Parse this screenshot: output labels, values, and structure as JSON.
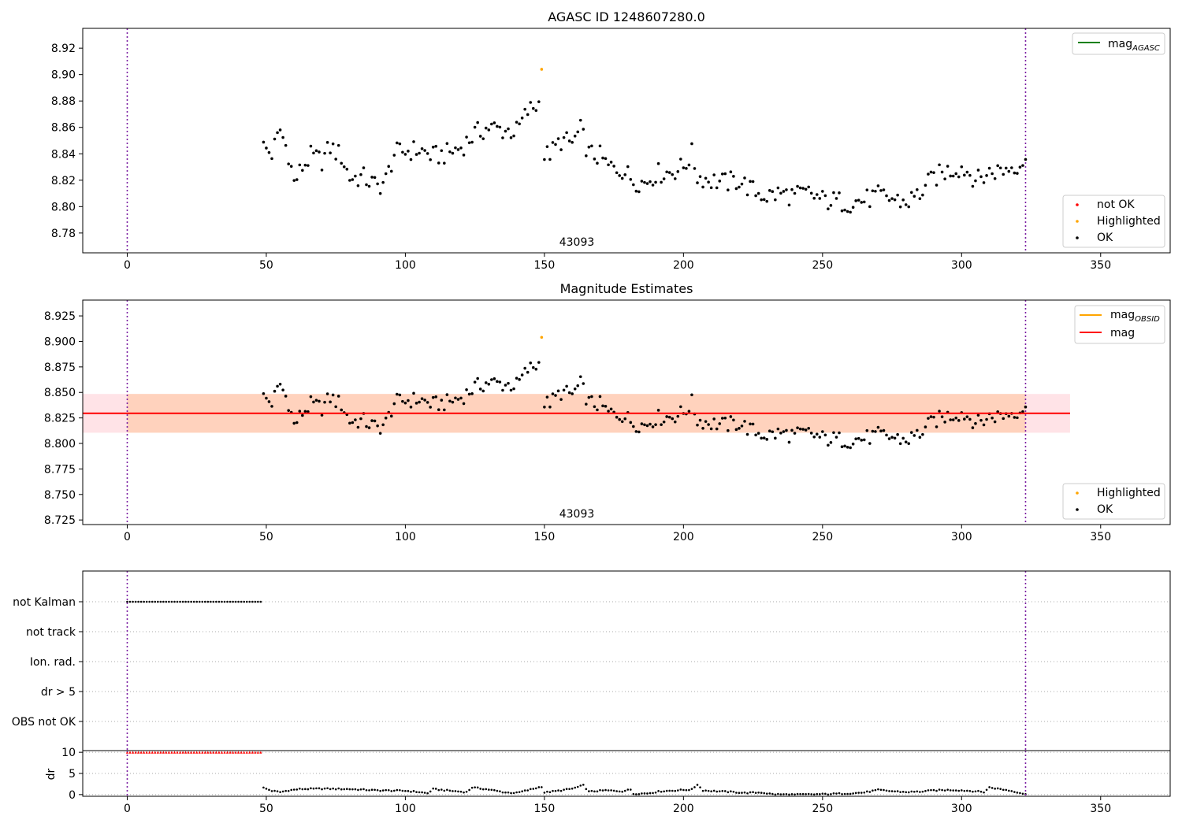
{
  "chart_data": [
    {
      "id": "top",
      "type": "scatter",
      "title": "AGASC ID 1248607280.0",
      "xlim": [
        -16,
        375
      ],
      "ylim": [
        8.765,
        8.935
      ],
      "xticks": [
        0,
        50,
        100,
        150,
        200,
        250,
        300,
        350
      ],
      "yticks": [
        8.78,
        8.8,
        8.82,
        8.84,
        8.86,
        8.88,
        8.9,
        8.92
      ],
      "ytick_decimals": 2,
      "vlines": [
        0,
        323
      ],
      "annotation": {
        "text": "43093",
        "x": 161,
        "y": 8.774
      },
      "legend_upper": [
        {
          "label": "mag",
          "sub": "AGASC",
          "color": "#008000",
          "kind": "line"
        }
      ],
      "legend_lower": [
        {
          "label": "not OK",
          "color": "#ff0000",
          "kind": "point"
        },
        {
          "label": "Highlighted",
          "color": "#ffa500",
          "kind": "point"
        },
        {
          "label": "OK",
          "color": "#000000",
          "kind": "point"
        }
      ],
      "highlighted": [
        [
          149,
          8.904
        ]
      ],
      "series": [
        {
          "name": "OK",
          "anchors": [
            [
              49,
              8.845
            ],
            [
              52,
              8.84
            ],
            [
              55,
              8.858
            ],
            [
              58,
              8.84
            ],
            [
              60,
              8.818
            ],
            [
              63,
              8.83
            ],
            [
              66,
              8.838
            ],
            [
              70,
              8.835
            ],
            [
              73,
              8.845
            ],
            [
              77,
              8.838
            ],
            [
              80,
              8.822
            ],
            [
              85,
              8.822
            ],
            [
              90,
              8.815
            ],
            [
              93,
              8.82
            ],
            [
              96,
              8.84
            ],
            [
              100,
              8.842
            ],
            [
              105,
              8.843
            ],
            [
              110,
              8.838
            ],
            [
              115,
              8.84
            ],
            [
              120,
              8.845
            ],
            [
              125,
              8.855
            ],
            [
              130,
              8.86
            ],
            [
              135,
              8.858
            ],
            [
              140,
              8.857
            ],
            [
              144,
              8.872
            ],
            [
              148,
              8.878
            ],
            [
              150,
              8.838
            ],
            [
              153,
              8.842
            ],
            [
              156,
              8.85
            ],
            [
              160,
              8.848
            ],
            [
              163,
              8.858
            ],
            [
              166,
              8.84
            ],
            [
              170,
              8.838
            ],
            [
              173,
              8.83
            ],
            [
              178,
              8.828
            ],
            [
              182,
              8.82
            ],
            [
              186,
              8.818
            ],
            [
              190,
              8.825
            ],
            [
              195,
              8.826
            ],
            [
              200,
              8.83
            ],
            [
              203,
              8.84
            ],
            [
              205,
              8.823
            ],
            [
              210,
              8.82
            ],
            [
              215,
              8.818
            ],
            [
              220,
              8.82
            ],
            [
              225,
              8.812
            ],
            [
              230,
              8.808
            ],
            [
              235,
              8.81
            ],
            [
              240,
              8.808
            ],
            [
              245,
              8.81
            ],
            [
              250,
              8.805
            ],
            [
              255,
              8.804
            ],
            [
              260,
              8.803
            ],
            [
              265,
              8.805
            ],
            [
              270,
              8.808
            ],
            [
              275,
              8.806
            ],
            [
              280,
              8.803
            ],
            [
              285,
              8.81
            ],
            [
              290,
              8.822
            ],
            [
              295,
              8.827
            ],
            [
              300,
              8.83
            ],
            [
              303,
              8.825
            ],
            [
              306,
              8.82
            ],
            [
              310,
              8.826
            ],
            [
              315,
              8.828
            ],
            [
              320,
              8.832
            ],
            [
              323,
              8.836
            ]
          ],
          "step": 1
        }
      ]
    },
    {
      "id": "middle",
      "type": "scatter",
      "title": "Magnitude Estimates",
      "xlim": [
        -16,
        375
      ],
      "ylim": [
        8.7205,
        8.9405
      ],
      "xticks": [
        0,
        50,
        100,
        150,
        200,
        250,
        300,
        350
      ],
      "yticks": [
        8.725,
        8.75,
        8.775,
        8.8,
        8.825,
        8.85,
        8.875,
        8.9,
        8.925
      ],
      "ytick_decimals": 3,
      "vlines": [
        0,
        323
      ],
      "annotation": {
        "text": "43093",
        "x": 161,
        "y": 8.728
      },
      "band": {
        "x": [
          -16,
          339
        ],
        "y": [
          8.8105,
          8.8485
        ],
        "mean": 8.8295
      },
      "legend_upper": [
        {
          "label": "mag",
          "sub": "OBSID",
          "color": "#ffa500",
          "kind": "line"
        },
        {
          "label": "mag",
          "sub": "",
          "color": "#ff0000",
          "kind": "line"
        }
      ],
      "legend_lower": [
        {
          "label": "Highlighted",
          "color": "#ffa500",
          "kind": "point"
        },
        {
          "label": "OK",
          "color": "#000000",
          "kind": "point"
        }
      ],
      "highlighted": [
        [
          149,
          8.904
        ]
      ],
      "series": [
        {
          "name": "OK",
          "anchors": [
            [
              49,
              8.845
            ],
            [
              52,
              8.84
            ],
            [
              55,
              8.858
            ],
            [
              58,
              8.84
            ],
            [
              60,
              8.818
            ],
            [
              63,
              8.83
            ],
            [
              66,
              8.838
            ],
            [
              70,
              8.835
            ],
            [
              73,
              8.845
            ],
            [
              77,
              8.838
            ],
            [
              80,
              8.822
            ],
            [
              85,
              8.822
            ],
            [
              90,
              8.815
            ],
            [
              93,
              8.82
            ],
            [
              96,
              8.84
            ],
            [
              100,
              8.842
            ],
            [
              105,
              8.843
            ],
            [
              110,
              8.838
            ],
            [
              115,
              8.84
            ],
            [
              120,
              8.845
            ],
            [
              125,
              8.855
            ],
            [
              130,
              8.86
            ],
            [
              135,
              8.858
            ],
            [
              140,
              8.857
            ],
            [
              144,
              8.872
            ],
            [
              148,
              8.878
            ],
            [
              150,
              8.838
            ],
            [
              153,
              8.842
            ],
            [
              156,
              8.85
            ],
            [
              160,
              8.848
            ],
            [
              163,
              8.858
            ],
            [
              166,
              8.84
            ],
            [
              170,
              8.838
            ],
            [
              173,
              8.83
            ],
            [
              178,
              8.828
            ],
            [
              182,
              8.82
            ],
            [
              186,
              8.818
            ],
            [
              190,
              8.825
            ],
            [
              195,
              8.826
            ],
            [
              200,
              8.83
            ],
            [
              203,
              8.84
            ],
            [
              205,
              8.823
            ],
            [
              210,
              8.82
            ],
            [
              215,
              8.818
            ],
            [
              220,
              8.82
            ],
            [
              225,
              8.812
            ],
            [
              230,
              8.808
            ],
            [
              235,
              8.81
            ],
            [
              240,
              8.808
            ],
            [
              245,
              8.81
            ],
            [
              250,
              8.805
            ],
            [
              255,
              8.804
            ],
            [
              260,
              8.803
            ],
            [
              265,
              8.805
            ],
            [
              270,
              8.808
            ],
            [
              275,
              8.806
            ],
            [
              280,
              8.803
            ],
            [
              285,
              8.81
            ],
            [
              290,
              8.822
            ],
            [
              295,
              8.827
            ],
            [
              300,
              8.83
            ],
            [
              303,
              8.825
            ],
            [
              306,
              8.82
            ],
            [
              310,
              8.826
            ],
            [
              315,
              8.828
            ],
            [
              320,
              8.832
            ],
            [
              323,
              8.836
            ]
          ],
          "step": 1
        }
      ]
    },
    {
      "id": "flags",
      "type": "scatter",
      "xlim": [
        -16,
        375
      ],
      "categories": [
        "not Kalman",
        "not track",
        "Ion. rad.",
        "dr > 5",
        "OBS not OK"
      ],
      "series": [
        {
          "name": "not Kalman",
          "x_range": [
            0,
            48
          ],
          "step": 1
        }
      ],
      "vlines": [
        0,
        323
      ]
    },
    {
      "id": "dr",
      "type": "scatter",
      "xlim": [
        -16,
        375
      ],
      "ylim": [
        -0.4,
        10.4
      ],
      "xticks": [
        0,
        50,
        100,
        150,
        200,
        250,
        300,
        350
      ],
      "yticks": [
        0,
        5,
        10
      ],
      "ylabel": "dr",
      "vlines": [
        0,
        323
      ],
      "series": [
        {
          "name": "dr (not Kalman)",
          "x_range": [
            0,
            48
          ],
          "value": 10,
          "color": "#ff0000"
        },
        {
          "name": "dr",
          "color": "#000000",
          "step": 1,
          "anchors": [
            [
              49,
              1.6
            ],
            [
              52,
              0.9
            ],
            [
              55,
              0.6
            ],
            [
              58,
              1.0
            ],
            [
              62,
              1.3
            ],
            [
              70,
              1.4
            ],
            [
              80,
              1.3
            ],
            [
              90,
              1.0
            ],
            [
              100,
              0.9
            ],
            [
              105,
              0.6
            ],
            [
              108,
              0.3
            ],
            [
              110,
              1.3
            ],
            [
              118,
              0.8
            ],
            [
              122,
              0.6
            ],
            [
              124,
              1.7
            ],
            [
              130,
              1.2
            ],
            [
              136,
              0.5
            ],
            [
              140,
              0.4
            ],
            [
              145,
              1.2
            ],
            [
              149,
              1.9
            ],
            [
              150,
              0.5
            ],
            [
              155,
              0.9
            ],
            [
              160,
              1.4
            ],
            [
              164,
              2.2
            ],
            [
              166,
              0.7
            ],
            [
              172,
              1.0
            ],
            [
              178,
              0.8
            ],
            [
              181,
              1.2
            ],
            [
              182,
              0.2
            ],
            [
              187,
              0.3
            ],
            [
              192,
              0.8
            ],
            [
              200,
              1.1
            ],
            [
              203,
              1.2
            ],
            [
              205,
              2.4
            ],
            [
              207,
              1.0
            ],
            [
              212,
              0.8
            ],
            [
              218,
              0.6
            ],
            [
              222,
              0.4
            ],
            [
              228,
              0.5
            ],
            [
              232,
              0.1
            ],
            [
              240,
              0.0
            ],
            [
              250,
              0.1
            ],
            [
              260,
              0.3
            ],
            [
              265,
              0.5
            ],
            [
              270,
              1.1
            ],
            [
              275,
              0.8
            ],
            [
              280,
              0.6
            ],
            [
              285,
              0.7
            ],
            [
              290,
              1.0
            ],
            [
              296,
              1.1
            ],
            [
              300,
              1.0
            ],
            [
              305,
              0.8
            ],
            [
              308,
              0.6
            ],
            [
              310,
              1.7
            ],
            [
              316,
              1.1
            ],
            [
              320,
              0.6
            ],
            [
              323,
              0.1
            ]
          ]
        }
      ]
    }
  ]
}
